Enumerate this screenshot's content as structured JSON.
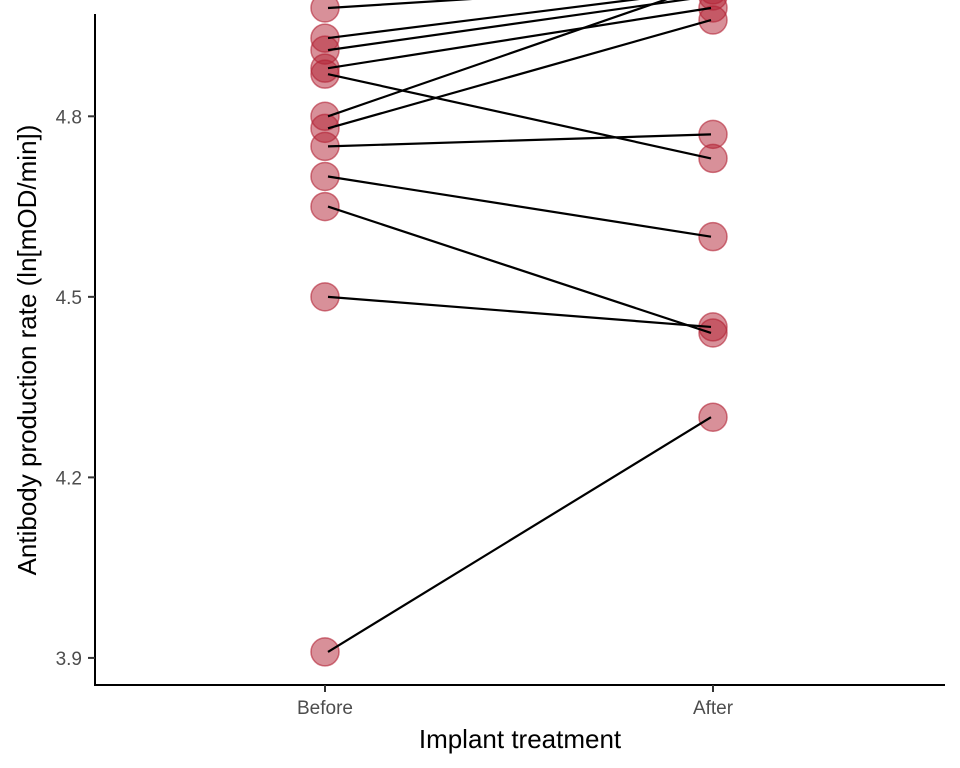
{
  "chart_data": {
    "type": "scatter",
    "subtype": "paired-dot-plot",
    "title": "",
    "xlabel": "Implant treatment",
    "ylabel": "Antibody production rate (ln[mOD/min])",
    "categories": [
      "Before",
      "After"
    ],
    "ylim": [
      3.855,
      4.97
    ],
    "yticks": [
      3.9,
      4.2,
      4.5,
      4.8
    ],
    "ytick_labels": [
      "3.9",
      "4.2",
      "4.5",
      "4.8"
    ],
    "grid": false,
    "legend": "none",
    "point_color": "#b22234",
    "line_color": "#000000",
    "pairs": [
      {
        "before": 4.98,
        "after": 5.02
      },
      {
        "before": 4.93,
        "after": 5.01
      },
      {
        "before": 4.91,
        "after": 5.0
      },
      {
        "before": 4.88,
        "after": 4.98
      },
      {
        "before": 4.87,
        "after": 4.73
      },
      {
        "before": 4.8,
        "after": 5.02
      },
      {
        "before": 4.78,
        "after": 4.96
      },
      {
        "before": 4.75,
        "after": 4.77
      },
      {
        "before": 4.7,
        "after": 4.6
      },
      {
        "before": 4.65,
        "after": 4.44
      },
      {
        "before": 4.5,
        "after": 4.45
      },
      {
        "before": 3.91,
        "after": 4.3
      }
    ]
  }
}
